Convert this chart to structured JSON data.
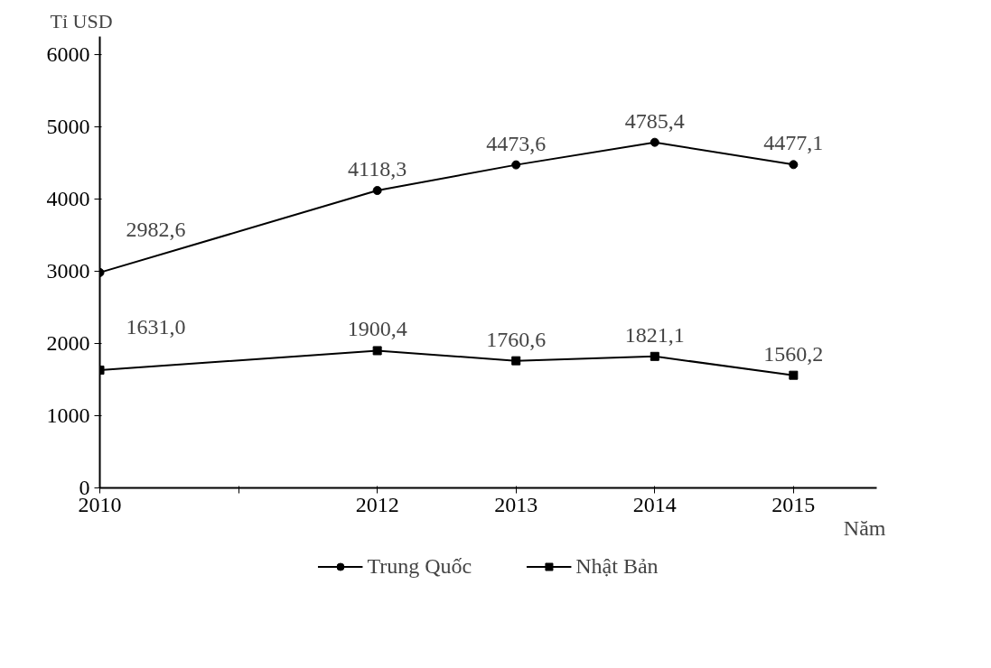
{
  "chart_data": {
    "type": "line",
    "xlabel": "Năm",
    "ylabel": "Tỉ USD",
    "x": [
      2010,
      2012,
      2013,
      2014,
      2015
    ],
    "series": [
      {
        "name": "Trung Quốc",
        "color": "#000000",
        "marker": "circle",
        "values": [
          2982.6,
          4118.3,
          4473.6,
          4785.4,
          4477.1
        ],
        "value_labels": [
          "2982,6",
          "4118,3",
          "4473,6",
          "4785,4",
          "4477,1"
        ]
      },
      {
        "name": "Nhật Bản",
        "color": "#000000",
        "marker": "square",
        "values": [
          1631.0,
          1900.4,
          1760.6,
          1821.1,
          1560.2
        ],
        "value_labels": [
          "1631,0",
          "1900,4",
          "1760,6",
          "1821,1",
          "1560,2"
        ]
      }
    ],
    "xlim": [
      2010,
      2015.6
    ],
    "ylim": [
      0,
      6250
    ],
    "xticks": [
      2010,
      {
        "value": 2011,
        "label": null
      },
      2012,
      2013,
      2014,
      2015
    ],
    "yticks": [
      0,
      1000,
      2000,
      3000,
      4000,
      5000,
      6000
    ],
    "grid": false,
    "legend": "bottom",
    "line_style": "solid"
  }
}
